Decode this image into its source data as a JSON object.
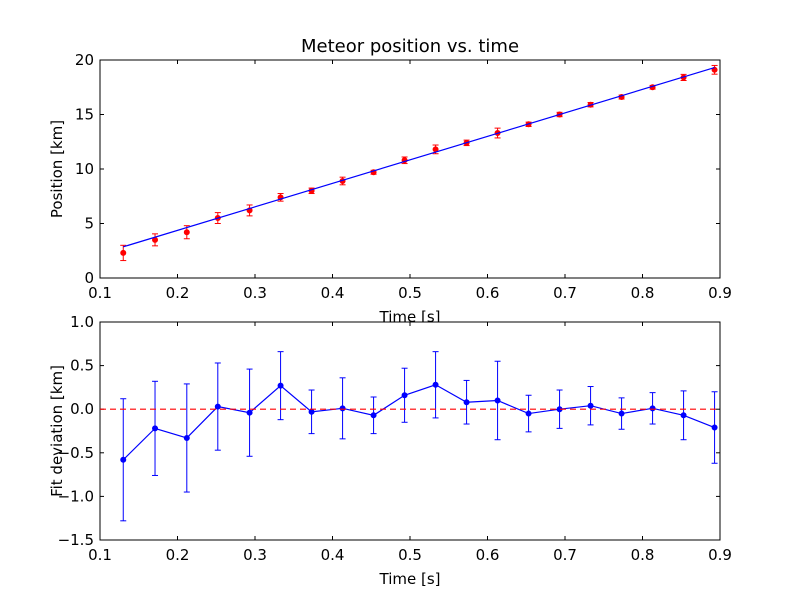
{
  "chart_data": [
    {
      "type": "scatter",
      "title": "Meteor position vs. time",
      "xlabel": "Time [s]",
      "ylabel": "Position [km]",
      "xlim": [
        0.1,
        0.9
      ],
      "ylim": [
        0,
        20
      ],
      "xticks": [
        0.1,
        0.2,
        0.3,
        0.4,
        0.5,
        0.6,
        0.7,
        0.8,
        0.9
      ],
      "xtick_labels": [
        "0.1",
        "0.2",
        "0.3",
        "0.4",
        "0.5",
        "0.6",
        "0.7",
        "0.8",
        "0.9"
      ],
      "yticks": [
        0,
        5,
        10,
        15,
        20
      ],
      "ytick_labels": [
        "0",
        "5",
        "10",
        "15",
        "20"
      ],
      "grid": false,
      "series": [
        {
          "kind": "errorbar-points",
          "color": "#ff0000",
          "x": [
            0.13,
            0.171,
            0.212,
            0.252,
            0.293,
            0.333,
            0.373,
            0.413,
            0.453,
            0.493,
            0.533,
            0.573,
            0.613,
            0.653,
            0.693,
            0.733,
            0.773,
            0.813,
            0.853,
            0.893
          ],
          "y": [
            2.3,
            3.5,
            4.2,
            5.5,
            6.2,
            7.4,
            8.0,
            8.9,
            9.7,
            10.8,
            11.8,
            12.4,
            13.3,
            14.1,
            15.0,
            15.9,
            16.6,
            17.5,
            18.4,
            19.1
          ],
          "yerr": [
            0.7,
            0.55,
            0.6,
            0.5,
            0.5,
            0.35,
            0.25,
            0.35,
            0.18,
            0.3,
            0.4,
            0.25,
            0.45,
            0.2,
            0.2,
            0.2,
            0.18,
            0.17,
            0.28,
            0.4
          ]
        },
        {
          "kind": "fit-line",
          "color": "#0000ff",
          "x": [
            0.13,
            0.893
          ],
          "y": [
            2.86,
            19.31
          ]
        }
      ]
    },
    {
      "type": "line",
      "title": "",
      "xlabel": "Time [s]",
      "ylabel": "Fit deviation [km]",
      "xlim": [
        0.1,
        0.9
      ],
      "ylim": [
        -1.5,
        1.0
      ],
      "xticks": [
        0.1,
        0.2,
        0.3,
        0.4,
        0.5,
        0.6,
        0.7,
        0.8,
        0.9
      ],
      "xtick_labels": [
        "0.1",
        "0.2",
        "0.3",
        "0.4",
        "0.5",
        "0.6",
        "0.7",
        "0.8",
        "0.9"
      ],
      "yticks": [
        -1.5,
        -1.0,
        -0.5,
        0.0,
        0.5,
        1.0
      ],
      "ytick_labels": [
        "−1.5",
        "−1.0",
        "−0.5",
        "0.0",
        "0.5",
        "1.0"
      ],
      "grid": false,
      "series": [
        {
          "kind": "errorbar-line",
          "color": "#0000ff",
          "x": [
            0.13,
            0.171,
            0.212,
            0.252,
            0.293,
            0.333,
            0.373,
            0.413,
            0.453,
            0.493,
            0.533,
            0.573,
            0.613,
            0.653,
            0.693,
            0.733,
            0.773,
            0.813,
            0.853,
            0.893
          ],
          "y": [
            -0.58,
            -0.22,
            -0.33,
            0.03,
            -0.04,
            0.27,
            -0.03,
            0.01,
            -0.07,
            0.16,
            0.28,
            0.08,
            0.1,
            -0.05,
            0.0,
            0.04,
            -0.05,
            0.01,
            -0.07,
            -0.21
          ],
          "yerr": [
            0.7,
            0.54,
            0.62,
            0.5,
            0.5,
            0.39,
            0.25,
            0.35,
            0.21,
            0.31,
            0.38,
            0.25,
            0.45,
            0.21,
            0.22,
            0.22,
            0.18,
            0.18,
            0.28,
            0.41
          ]
        },
        {
          "kind": "reference-line",
          "color": "#ff0000",
          "dashed": true,
          "y": 0.0
        }
      ]
    }
  ]
}
